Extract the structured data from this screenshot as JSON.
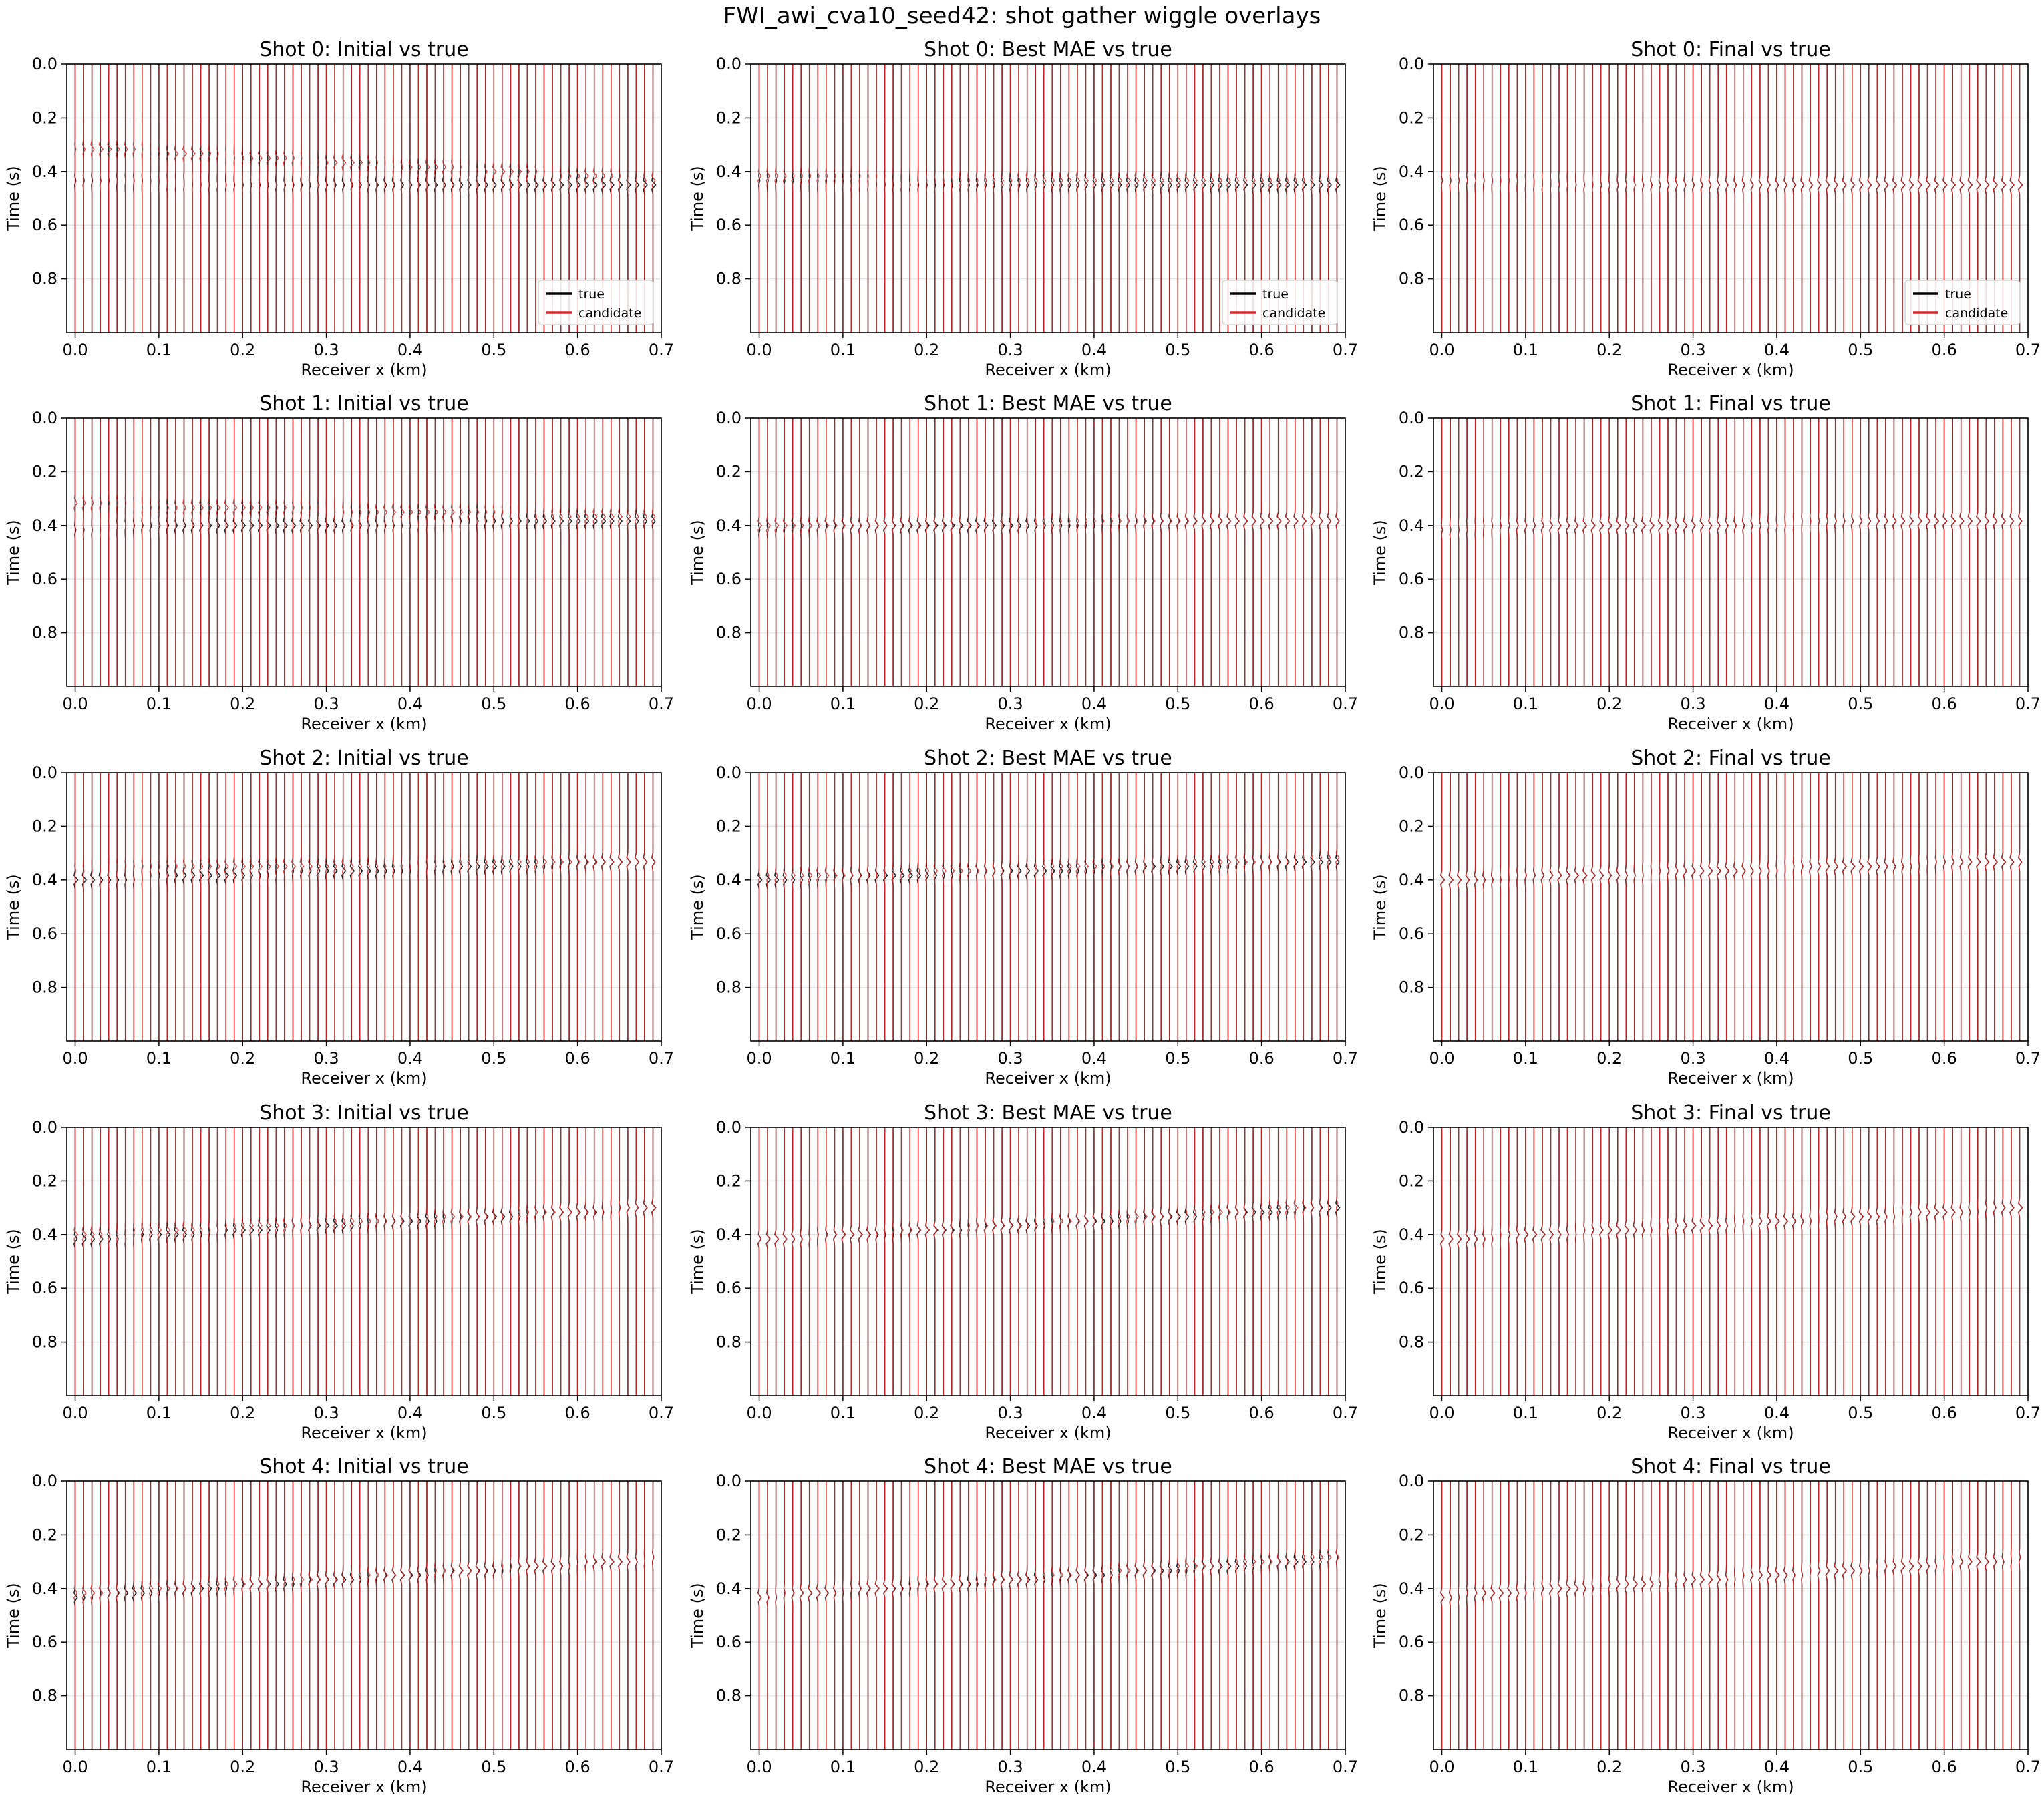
{
  "figure": {
    "title": "FWI_awi_cva10_seed42: shot gather wiggle overlays"
  },
  "colors": {
    "true": "#000000",
    "candidate": "#d62728",
    "grid": "#e6e6e6"
  },
  "chart_data": {
    "type": "line",
    "xlabel": "Receiver x (km)",
    "ylabel": "Time (s)",
    "xlim": [
      -0.01,
      0.7
    ],
    "ylim": [
      1.0,
      0.0
    ],
    "x_ticks": [
      0.0,
      0.1,
      0.2,
      0.3,
      0.4,
      0.5,
      0.6,
      0.7
    ],
    "x_tick_labels": [
      "0.0",
      "0.1",
      "0.2",
      "0.3",
      "0.4",
      "0.5",
      "0.6",
      "0.7"
    ],
    "y_ticks": [
      0.0,
      0.2,
      0.4,
      0.6,
      0.8
    ],
    "y_tick_labels": [
      "0.0",
      "0.2",
      "0.4",
      "0.6",
      "0.8"
    ],
    "grid": true,
    "legend": {
      "entries": [
        "true",
        "candidate"
      ],
      "placement": "lower-right"
    },
    "receivers": {
      "start_km": 0.0,
      "end_km": 0.69,
      "count": 70
    },
    "true_arrival_s": [
      {
        "shot": 0,
        "start": 0.44,
        "end": 0.45
      },
      {
        "shot": 1,
        "start": 0.41,
        "end": 0.38
      },
      {
        "shot": 2,
        "start": 0.4,
        "end": 0.33
      },
      {
        "shot": 3,
        "start": 0.42,
        "end": 0.3
      },
      {
        "shot": 4,
        "start": 0.43,
        "end": 0.29
      }
    ],
    "panels": [
      {
        "row": 0,
        "col": 0,
        "title": "Shot 0: Initial vs true",
        "legend": true,
        "candidate_arrival_s": {
          "start": 0.31,
          "end": 0.43
        }
      },
      {
        "row": 0,
        "col": 1,
        "title": "Shot 0: Best MAE vs true",
        "legend": true,
        "candidate_arrival_s": {
          "start": 0.42,
          "end": 0.44
        }
      },
      {
        "row": 0,
        "col": 2,
        "title": "Shot 0: Final vs true",
        "legend": true,
        "candidate_arrival_s": {
          "start": 0.44,
          "end": 0.45
        }
      },
      {
        "row": 1,
        "col": 0,
        "title": "Shot 1: Initial vs true",
        "legend": false,
        "candidate_arrival_s": {
          "start": 0.32,
          "end": 0.37
        }
      },
      {
        "row": 1,
        "col": 1,
        "title": "Shot 1: Best MAE vs true",
        "legend": false,
        "candidate_arrival_s": {
          "start": 0.4,
          "end": 0.38
        }
      },
      {
        "row": 1,
        "col": 2,
        "title": "Shot 1: Final vs true",
        "legend": false,
        "candidate_arrival_s": {
          "start": 0.41,
          "end": 0.38
        }
      },
      {
        "row": 2,
        "col": 0,
        "title": "Shot 2: Initial vs true",
        "legend": false,
        "candidate_arrival_s": {
          "start": 0.36,
          "end": 0.33
        }
      },
      {
        "row": 2,
        "col": 1,
        "title": "Shot 2: Best MAE vs true",
        "legend": false,
        "candidate_arrival_s": {
          "start": 0.39,
          "end": 0.32
        }
      },
      {
        "row": 2,
        "col": 2,
        "title": "Shot 2: Final vs true",
        "legend": false,
        "candidate_arrival_s": {
          "start": 0.4,
          "end": 0.33
        }
      },
      {
        "row": 3,
        "col": 0,
        "title": "Shot 3: Initial vs true",
        "legend": false,
        "candidate_arrival_s": {
          "start": 0.4,
          "end": 0.3
        }
      },
      {
        "row": 3,
        "col": 1,
        "title": "Shot 3: Best MAE vs true",
        "legend": false,
        "candidate_arrival_s": {
          "start": 0.42,
          "end": 0.29
        }
      },
      {
        "row": 3,
        "col": 2,
        "title": "Shot 3: Final vs true",
        "legend": false,
        "candidate_arrival_s": {
          "start": 0.42,
          "end": 0.3
        }
      },
      {
        "row": 4,
        "col": 0,
        "title": "Shot 4: Initial vs true",
        "legend": false,
        "candidate_arrival_s": {
          "start": 0.42,
          "end": 0.29
        }
      },
      {
        "row": 4,
        "col": 1,
        "title": "Shot 4: Best MAE vs true",
        "legend": false,
        "candidate_arrival_s": {
          "start": 0.43,
          "end": 0.28
        }
      },
      {
        "row": 4,
        "col": 2,
        "title": "Shot 4: Final vs true",
        "legend": false,
        "candidate_arrival_s": {
          "start": 0.43,
          "end": 0.29
        }
      }
    ]
  }
}
